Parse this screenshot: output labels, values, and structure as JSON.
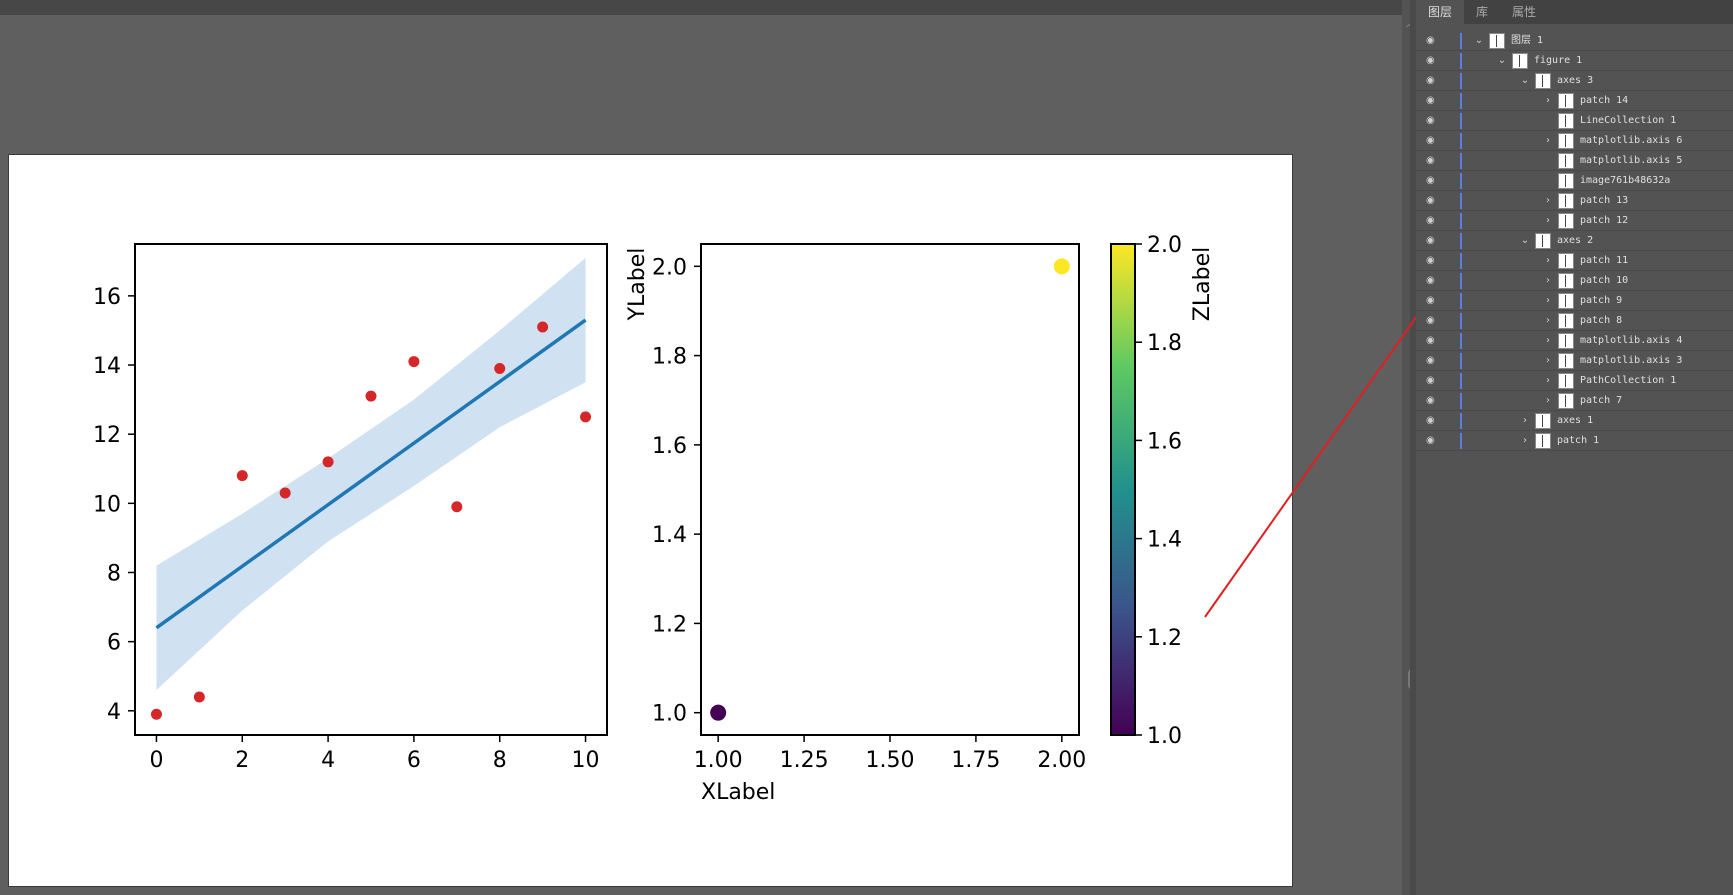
{
  "layers_panel": {
    "tabs": [
      {
        "label": "图层",
        "active": true
      },
      {
        "label": "库",
        "active": false
      },
      {
        "label": "属性",
        "active": false
      }
    ],
    "rows": [
      {
        "label": "图层 1",
        "level": 0,
        "expanded": true,
        "has_chevron": true
      },
      {
        "label": "figure 1",
        "level": 1,
        "expanded": true,
        "has_chevron": true
      },
      {
        "label": "axes 3",
        "level": 2,
        "expanded": true,
        "has_chevron": true
      },
      {
        "label": "patch 14",
        "level": 3,
        "expanded": false,
        "has_chevron": true
      },
      {
        "label": "LineCollection 1",
        "level": 3,
        "expanded": false,
        "has_chevron": false
      },
      {
        "label": "matplotlib.axis 6",
        "level": 3,
        "expanded": false,
        "has_chevron": true
      },
      {
        "label": "matplotlib.axis 5",
        "level": 3,
        "expanded": false,
        "has_chevron": false
      },
      {
        "label": "image761b48632a",
        "level": 3,
        "expanded": false,
        "has_chevron": false
      },
      {
        "label": "patch 13",
        "level": 3,
        "expanded": false,
        "has_chevron": true
      },
      {
        "label": "patch 12",
        "level": 3,
        "expanded": false,
        "has_chevron": true
      },
      {
        "label": "axes 2",
        "level": 2,
        "expanded": true,
        "has_chevron": true
      },
      {
        "label": "patch 11",
        "level": 3,
        "expanded": false,
        "has_chevron": true
      },
      {
        "label": "patch 10",
        "level": 3,
        "expanded": false,
        "has_chevron": true
      },
      {
        "label": "patch 9",
        "level": 3,
        "expanded": false,
        "has_chevron": true
      },
      {
        "label": "patch 8",
        "level": 3,
        "expanded": false,
        "has_chevron": true
      },
      {
        "label": "matplotlib.axis 4",
        "level": 3,
        "expanded": false,
        "has_chevron": true
      },
      {
        "label": "matplotlib.axis 3",
        "level": 3,
        "expanded": false,
        "has_chevron": true
      },
      {
        "label": "PathCollection 1",
        "level": 3,
        "expanded": false,
        "has_chevron": true
      },
      {
        "label": "patch 7",
        "level": 3,
        "expanded": false,
        "has_chevron": true
      },
      {
        "label": "axes 1",
        "level": 2,
        "expanded": false,
        "has_chevron": true
      },
      {
        "label": "patch 1",
        "level": 2,
        "expanded": false,
        "has_chevron": true
      }
    ]
  },
  "colors": {
    "accent_bar": "#5a7fe0",
    "arrow": "#e02020",
    "scatter_red": "#d62728",
    "fit_line": "#1f77b4",
    "band_fill": "#d0e2f1",
    "viridis_low": "#440154",
    "viridis_high": "#fde725"
  },
  "chart_data": [
    {
      "type": "scatter",
      "title": "",
      "xlabel": "",
      "ylabel": "",
      "xlim": [
        -0.5,
        10.5
      ],
      "ylim": [
        3.3,
        17.5
      ],
      "xticks": [
        0,
        2,
        4,
        6,
        8,
        10
      ],
      "yticks": [
        4,
        6,
        8,
        10,
        12,
        14,
        16
      ],
      "points": [
        {
          "x": 0,
          "y": 3.9
        },
        {
          "x": 1,
          "y": 4.4
        },
        {
          "x": 2,
          "y": 10.8
        },
        {
          "x": 3,
          "y": 10.3
        },
        {
          "x": 4,
          "y": 11.2
        },
        {
          "x": 5,
          "y": 13.1
        },
        {
          "x": 6,
          "y": 14.1
        },
        {
          "x": 7,
          "y": 9.9
        },
        {
          "x": 8,
          "y": 13.9
        },
        {
          "x": 9,
          "y": 15.1
        },
        {
          "x": 10,
          "y": 12.5
        }
      ],
      "fit_line": {
        "x": [
          0,
          10
        ],
        "y": [
          6.4,
          15.3
        ]
      },
      "confidence_band": {
        "x": [
          0,
          2,
          4,
          6,
          8,
          10
        ],
        "upper": [
          8.2,
          9.7,
          11.3,
          13.0,
          15.0,
          17.1
        ],
        "lower": [
          4.6,
          6.9,
          8.9,
          10.5,
          12.2,
          13.5
        ]
      }
    },
    {
      "type": "scatter",
      "title": "",
      "xlabel": "XLabel",
      "ylabel": "YLabel",
      "colorbar_label": "ZLabel",
      "xlim": [
        0.95,
        2.05
      ],
      "ylim": [
        0.95,
        2.05
      ],
      "xticks": [
        "1.00",
        "1.25",
        "1.50",
        "1.75",
        "2.00"
      ],
      "yticks": [
        "1.0",
        "1.2",
        "1.4",
        "1.6",
        "1.8",
        "2.0"
      ],
      "colorbar_ticks": [
        "1.0",
        "1.2",
        "1.4",
        "1.6",
        "1.8",
        "2.0"
      ],
      "colorbar_range": [
        1.0,
        2.0
      ],
      "points": [
        {
          "x": 1.0,
          "y": 1.0,
          "z": 1.0
        },
        {
          "x": 2.0,
          "y": 2.0,
          "z": 2.0
        }
      ]
    }
  ]
}
